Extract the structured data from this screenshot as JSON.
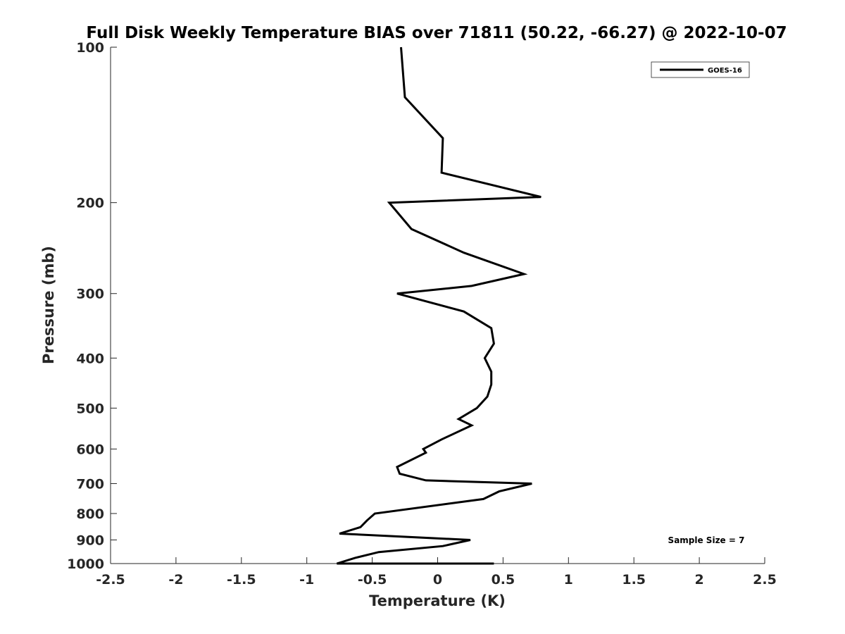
{
  "chart_data": {
    "type": "line",
    "title": "Full Disk Weekly Temperature BIAS over 71811 (50.22, -66.27) @ 2022-10-07",
    "xlabel": "Temperature (K)",
    "ylabel": "Pressure (mb)",
    "xlim": [
      -2.5,
      2.5
    ],
    "ylim": [
      1000,
      100
    ],
    "yscale": "log",
    "x_ticks": [
      -2.5,
      -2,
      -1.5,
      -1,
      -0.5,
      0,
      0.5,
      1,
      1.5,
      2,
      2.5
    ],
    "x_tick_labels": [
      "-2.5",
      "-2",
      "-1.5",
      "-1",
      "-0.5",
      "0",
      "0.5",
      "1",
      "1.5",
      "2",
      "2.5"
    ],
    "y_ticks": [
      100,
      200,
      300,
      400,
      500,
      600,
      700,
      800,
      900,
      1000
    ],
    "y_tick_labels": [
      "100",
      "200",
      "300",
      "400",
      "500",
      "600",
      "700",
      "800",
      "900",
      "1000"
    ],
    "grid": false,
    "legend_position": "top-right",
    "series": [
      {
        "name": "GOES-16",
        "color": "#000000",
        "points": [
          {
            "t": -0.28,
            "p": 100
          },
          {
            "t": -0.25,
            "p": 125
          },
          {
            "t": 0.04,
            "p": 150
          },
          {
            "t": 0.03,
            "p": 175
          },
          {
            "t": 0.79,
            "p": 195
          },
          {
            "t": -0.37,
            "p": 200
          },
          {
            "t": -0.2,
            "p": 225
          },
          {
            "t": 0.2,
            "p": 250
          },
          {
            "t": 0.66,
            "p": 275
          },
          {
            "t": 0.26,
            "p": 290
          },
          {
            "t": -0.31,
            "p": 300
          },
          {
            "t": 0.2,
            "p": 325
          },
          {
            "t": 0.41,
            "p": 350
          },
          {
            "t": 0.43,
            "p": 375
          },
          {
            "t": 0.36,
            "p": 400
          },
          {
            "t": 0.41,
            "p": 425
          },
          {
            "t": 0.41,
            "p": 450
          },
          {
            "t": 0.38,
            "p": 475
          },
          {
            "t": 0.3,
            "p": 500
          },
          {
            "t": 0.16,
            "p": 525
          },
          {
            "t": 0.26,
            "p": 540
          },
          {
            "t": 0.03,
            "p": 575
          },
          {
            "t": -0.11,
            "p": 600
          },
          {
            "t": -0.09,
            "p": 610
          },
          {
            "t": -0.31,
            "p": 650
          },
          {
            "t": -0.29,
            "p": 670
          },
          {
            "t": -0.09,
            "p": 690
          },
          {
            "t": 0.72,
            "p": 700
          },
          {
            "t": 0.47,
            "p": 725
          },
          {
            "t": 0.35,
            "p": 750
          },
          {
            "t": -0.48,
            "p": 800
          },
          {
            "t": -0.54,
            "p": 825
          },
          {
            "t": -0.59,
            "p": 850
          },
          {
            "t": -0.75,
            "p": 875
          },
          {
            "t": 0.25,
            "p": 900
          },
          {
            "t": 0.04,
            "p": 925
          },
          {
            "t": -0.45,
            "p": 950
          },
          {
            "t": -0.63,
            "p": 975
          },
          {
            "t": -0.77,
            "p": 1000
          },
          {
            "t": -0.66,
            "p": 1025
          },
          {
            "t": 0.43,
            "p": 1050
          }
        ]
      }
    ],
    "annotation": "Sample Size = 7"
  }
}
